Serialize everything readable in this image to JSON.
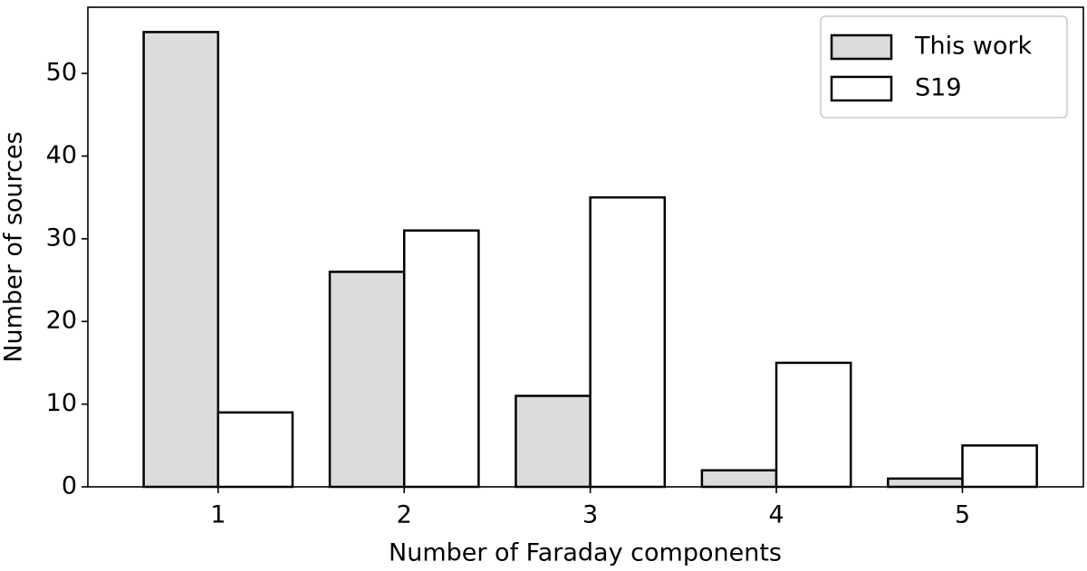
{
  "chart_data": {
    "type": "bar",
    "x_label": "Number of Faraday components",
    "y_label": "Number of sources",
    "x": [
      1,
      2,
      3,
      4,
      5
    ],
    "series": [
      {
        "name": "This work",
        "color": "#dcdcdc",
        "values": [
          55,
          26,
          11,
          2,
          1
        ]
      },
      {
        "name": "S19",
        "color": "#ffffff",
        "values": [
          9,
          31,
          35,
          15,
          5
        ]
      }
    ],
    "xlim": [
      0.3,
      5.65
    ],
    "xticks": [
      1,
      2,
      3,
      4,
      5
    ],
    "ylim": [
      0,
      58
    ],
    "yticks": [
      0,
      10,
      20,
      30,
      40,
      50
    ],
    "legend": "upper right"
  }
}
